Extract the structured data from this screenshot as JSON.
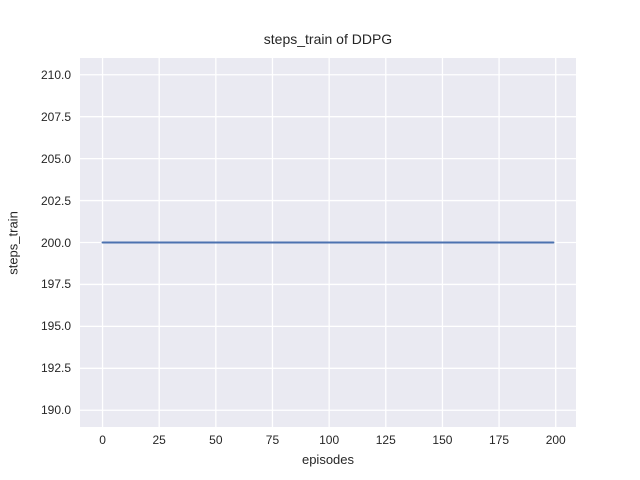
{
  "chart_data": {
    "type": "line",
    "title": "steps_train of DDPG",
    "xlabel": "episodes",
    "ylabel": "steps_train",
    "xlim": [
      -9.95,
      208.95
    ],
    "ylim": [
      189,
      211
    ],
    "xticks": [
      0,
      25,
      50,
      75,
      100,
      125,
      150,
      175,
      200
    ],
    "xtick_labels": [
      "0",
      "25",
      "50",
      "75",
      "100",
      "125",
      "150",
      "175",
      "200"
    ],
    "yticks": [
      190.0,
      192.5,
      195.0,
      197.5,
      200.0,
      202.5,
      205.0,
      207.5,
      210.0
    ],
    "ytick_labels": [
      "190.0",
      "192.5",
      "195.0",
      "197.5",
      "200.0",
      "202.5",
      "205.0",
      "207.5",
      "210.0"
    ],
    "grid": true,
    "legend": false,
    "plot_bg_color": "#eaeaf2",
    "grid_color": "#ffffff",
    "text_color": "#262626",
    "series": [
      {
        "name": "steps_train",
        "color": "#4c72b0",
        "line_width": 2,
        "x": [
          0,
          199
        ],
        "y": [
          200,
          200
        ],
        "note": "constant value 200 for all episodes 0-199"
      }
    ]
  }
}
